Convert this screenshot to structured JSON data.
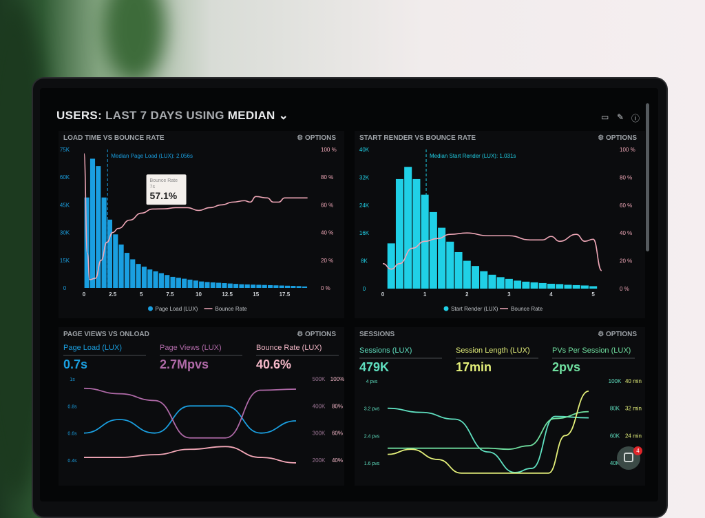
{
  "header": {
    "prefix": "USERS:",
    "range": "LAST 7 DAYS",
    "using": "USING",
    "stat": "MEDIAN",
    "chevron": "chevron-down-icon"
  },
  "header_icons": [
    "monitor-icon",
    "share-icon",
    "help-icon"
  ],
  "options_label": "OPTIONS",
  "colors": {
    "blue": "#1a9fe0",
    "cyan": "#20d0e6",
    "pink": "#f0a8b8",
    "purple": "#b06aa8",
    "teal": "#5fe0c0",
    "green": "#70e0a0",
    "yellow": "#e4f07a"
  },
  "chart_data": [
    {
      "type": "bar",
      "title": "LOAD TIME VS BOUNCE RATE",
      "annotation": "Median Page Load (LUX): 2.056s",
      "median": 2.056,
      "xlim": [
        0,
        20
      ],
      "xticks": [
        "0",
        "2.5",
        "5",
        "7.5",
        "10",
        "12.5",
        "15",
        "17.5"
      ],
      "xtick_values": [
        0,
        2.5,
        5,
        7.5,
        10,
        12.5,
        15,
        17.5
      ],
      "ylim": [
        0,
        75000
      ],
      "yticks": [
        "75K",
        "60K",
        "45K",
        "30K",
        "15K",
        "0"
      ],
      "y2lim": [
        0,
        100
      ],
      "y2ticks": [
        "100 %",
        "80 %",
        "60 %",
        "40 %",
        "20 %",
        "0 %"
      ],
      "bin_width": 0.5,
      "series": [
        {
          "name": "Page Load (LUX)",
          "type": "bar",
          "x_start": 0,
          "values": [
            49000,
            70000,
            66000,
            49000,
            37000,
            29000,
            23500,
            19000,
            15500,
            13000,
            11500,
            10000,
            9000,
            8000,
            7000,
            6000,
            5500,
            5000,
            4500,
            4000,
            3500,
            3200,
            3000,
            2800,
            2600,
            2400,
            2200,
            2000,
            1900,
            1800,
            1700,
            1600,
            1500,
            1400,
            1300,
            1200,
            1100,
            1000,
            800
          ]
        },
        {
          "name": "Bounce Rate",
          "type": "line",
          "axis": "right",
          "points": [
            [
              0,
              97
            ],
            [
              0.3,
              25
            ],
            [
              0.5,
              6
            ],
            [
              1,
              7
            ],
            [
              1.5,
              20
            ],
            [
              2,
              33
            ],
            [
              2.5,
              40
            ],
            [
              3,
              43
            ],
            [
              4,
              49
            ],
            [
              5,
              54
            ],
            [
              6,
              57
            ],
            [
              7,
              57.1
            ],
            [
              8,
              58
            ],
            [
              9,
              58
            ],
            [
              10,
              56
            ],
            [
              11,
              58
            ],
            [
              12,
              60
            ],
            [
              13,
              62
            ],
            [
              14,
              63
            ],
            [
              14.5,
              62
            ],
            [
              15,
              66
            ],
            [
              16,
              65
            ],
            [
              16.5,
              62
            ],
            [
              17,
              62
            ],
            [
              17.5,
              65
            ],
            [
              19.5,
              65
            ]
          ]
        }
      ],
      "tooltip": {
        "label": "Bounce Rate",
        "x": "7s",
        "value": "57.1%"
      }
    },
    {
      "type": "bar",
      "title": "START RENDER VS BOUNCE RATE",
      "annotation": "Median Start Render (LUX): 1.031s",
      "median": 1.031,
      "xlim": [
        0,
        5.3
      ],
      "xticks": [
        "0",
        "1",
        "2",
        "3",
        "4",
        "5"
      ],
      "xtick_values": [
        0,
        1,
        2,
        3,
        4,
        5
      ],
      "ylim": [
        0,
        40000
      ],
      "yticks": [
        "40K",
        "32K",
        "24K",
        "16K",
        "8K",
        "0"
      ],
      "y2lim": [
        0,
        100
      ],
      "y2ticks": [
        "100 %",
        "80 %",
        "60 %",
        "40 %",
        "20 %",
        "0 %"
      ],
      "bin_width": 0.2,
      "series": [
        {
          "name": "Start Render (LUX)",
          "type": "bar",
          "x_start": 0.1,
          "values": [
            13000,
            31500,
            35000,
            31500,
            27000,
            22000,
            17500,
            13500,
            10500,
            8000,
            6500,
            5000,
            4000,
            3300,
            2800,
            2300,
            2000,
            1800,
            1600,
            1400,
            1300,
            1100,
            1000,
            900,
            700
          ]
        },
        {
          "name": "Bounce Rate",
          "type": "line",
          "axis": "right",
          "points": [
            [
              0,
              18
            ],
            [
              0.2,
              14
            ],
            [
              0.4,
              18
            ],
            [
              0.7,
              29
            ],
            [
              1,
              34
            ],
            [
              1.3,
              36
            ],
            [
              1.6,
              39
            ],
            [
              2,
              40
            ],
            [
              2.5,
              38
            ],
            [
              3,
              38
            ],
            [
              3.5,
              35
            ],
            [
              3.8,
              35
            ],
            [
              4,
              37.5
            ],
            [
              4.2,
              34
            ],
            [
              4.6,
              39
            ],
            [
              4.8,
              34
            ],
            [
              5,
              35.5
            ],
            [
              5.2,
              13
            ]
          ]
        }
      ]
    },
    {
      "type": "line",
      "title": "PAGE VIEWS VS ONLOAD",
      "kpis": [
        {
          "label": "Page Load (LUX)",
          "value": "0.7s",
          "color": "#1a9fe0"
        },
        {
          "label": "Page Views (LUX)",
          "value": "2.7Mpvs",
          "color": "#b06aa8"
        },
        {
          "label": "Bounce Rate (LUX)",
          "value": "40.6%",
          "color": "#f4b8c8"
        }
      ],
      "yticks": [
        "1s",
        "0.8s",
        "0.6s",
        "0.4s"
      ],
      "ylim": [
        0.35,
        1.0
      ],
      "y2ticks": [
        "500K",
        "400K",
        "300K",
        "200K"
      ],
      "y2lim": [
        175,
        500
      ],
      "y3ticks": [
        "100%",
        "80%",
        "60%",
        "40%"
      ],
      "y3lim": [
        35,
        100
      ],
      "series": [
        {
          "name": "Page Load (LUX)",
          "axis": "y",
          "color": "#1a9fe0",
          "points": [
            [
              0,
              0.6
            ],
            [
              1,
              0.7
            ],
            [
              2,
              0.6
            ],
            [
              3,
              0.8
            ],
            [
              4,
              0.8
            ],
            [
              5,
              0.6
            ],
            [
              6,
              0.69
            ]
          ]
        },
        {
          "name": "Page Views (LUX)",
          "axis": "y2",
          "color": "#b06aa8",
          "points": [
            [
              0,
              465
            ],
            [
              1,
              445
            ],
            [
              2,
              420
            ],
            [
              3,
              282
            ],
            [
              4,
              282
            ],
            [
              5,
              458
            ],
            [
              6,
              462
            ]
          ]
        },
        {
          "name": "Bounce Rate (LUX)",
          "axis": "y3",
          "color": "#f4a8b8",
          "points": [
            [
              0,
              42
            ],
            [
              1,
              42
            ],
            [
              2,
              44
            ],
            [
              3,
              48
            ],
            [
              4,
              50
            ],
            [
              5,
              42
            ],
            [
              6,
              38
            ]
          ]
        }
      ]
    },
    {
      "type": "line",
      "title": "SESSIONS",
      "kpis": [
        {
          "label": "Sessions (LUX)",
          "value": "479K",
          "color": "#5fe0c0"
        },
        {
          "label": "Session Length (LUX)",
          "value": "17min",
          "color": "#e4f07a"
        },
        {
          "label": "PVs Per Session (LUX)",
          "value": "2pvs",
          "color": "#70e0a0"
        }
      ],
      "yticks": [
        "4 pvs",
        "3.2 pvs",
        "2.4 pvs",
        "1.6 pvs"
      ],
      "ylim": [
        1.4,
        4.0
      ],
      "y2ticks": [
        "100K",
        "80K",
        "60K",
        "40K"
      ],
      "y2lim": [
        33,
        100
      ],
      "y3ticks": [
        "40 min",
        "32 min",
        "24 min"
      ],
      "y3lim": [
        13,
        40
      ],
      "series": [
        {
          "name": "Sessions (LUX)",
          "axis": "y2",
          "color": "#5fe0c0",
          "points": [
            [
              0,
              80
            ],
            [
              1,
              77
            ],
            [
              2,
              72
            ],
            [
              3,
              48
            ],
            [
              3.8,
              33
            ],
            [
              4.3,
              36
            ],
            [
              5,
              74
            ],
            [
              6,
              73
            ]
          ]
        },
        {
          "name": "PVs Per Session (LUX)",
          "axis": "y",
          "color": "#70e0a0",
          "points": [
            [
              0,
              2.03
            ],
            [
              1,
              2.03
            ],
            [
              2,
              2.03
            ],
            [
              3,
              2.03
            ],
            [
              3.6,
              2.0
            ],
            [
              4.2,
              2.1
            ],
            [
              5,
              2.9
            ],
            [
              6,
              3.1
            ]
          ]
        },
        {
          "name": "Session Length (LUX)",
          "axis": "y3",
          "color": "#e4f07a",
          "points": [
            [
              0,
              18.5
            ],
            [
              0.7,
              20
            ],
            [
              1.5,
              17
            ],
            [
              2.2,
              13
            ],
            [
              4.8,
              13
            ],
            [
              5.3,
              24
            ],
            [
              6,
              37
            ]
          ]
        }
      ]
    }
  ],
  "chat": {
    "badge": "4"
  }
}
